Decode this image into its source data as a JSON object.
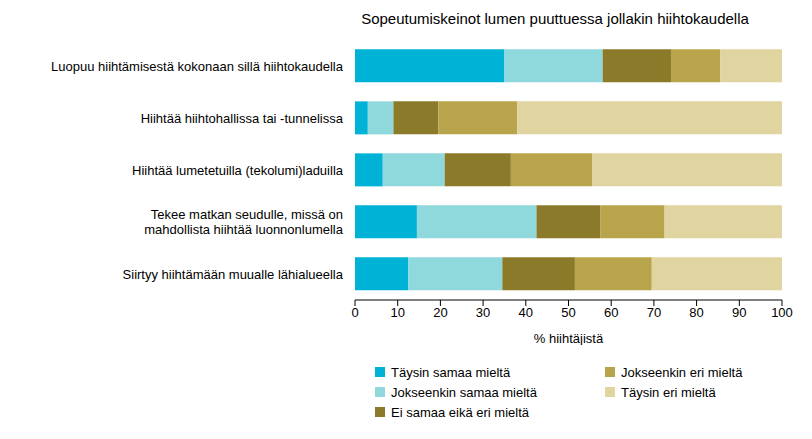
{
  "chart_data": {
    "type": "bar",
    "orientation": "horizontal",
    "stacked": true,
    "title": "Sopeutumiskeinot lumen puuttuessa jollakin hiihtokaudella",
    "x_label": "% hiihtäjistä",
    "categories": [
      "Luopuu hiihtämisestä kokonaan sillä hiihtokaudella",
      "Hiihtää hiihtohallissa tai -tunnelissa",
      "Hiihtää lumetetuilla (tekolumi)laduilla",
      "Tekee matkan seudulle, missä on mahdollista hiihtää luonnonlumella",
      "Siirtyy hiihtämään muualle lähialueella"
    ],
    "series": [
      {
        "name": "Täysin samaa mieltä",
        "color": "#00b2d6",
        "values": [
          35,
          3,
          6.5,
          14.5,
          12.5
        ]
      },
      {
        "name": "Jokseenkin samaa mieltä",
        "color": "#8fd8dc",
        "values": [
          23,
          6,
          14.5,
          28,
          22
        ]
      },
      {
        "name": "Ei samaa eikä eri mieltä",
        "color": "#8c7a2b",
        "values": [
          16,
          10.5,
          15.5,
          15,
          17
        ]
      },
      {
        "name": "Jokseenkin eri mieltä",
        "color": "#b8a44a",
        "values": [
          11.5,
          18.5,
          19,
          15,
          18
        ]
      },
      {
        "name": "Täysin eri mieltä",
        "color": "#e0d4a0",
        "values": [
          14.5,
          62,
          44.5,
          27.5,
          30.5
        ]
      }
    ],
    "xlim": [
      0,
      100
    ],
    "xticks": [
      0,
      10,
      20,
      30,
      40,
      50,
      60,
      70,
      80,
      90,
      100
    ],
    "grid": false,
    "legend": "bottom"
  }
}
